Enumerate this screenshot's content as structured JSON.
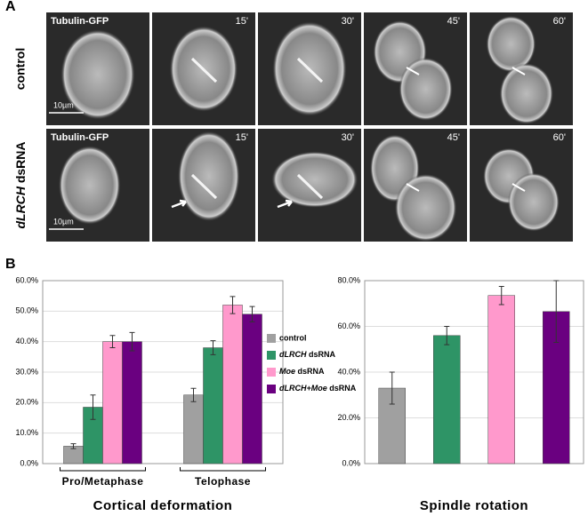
{
  "panel_a": {
    "label": "A",
    "rows": [
      {
        "label": "control",
        "frames": [
          "Tubulin-GFP",
          "15'",
          "30'",
          "45'",
          "60'"
        ],
        "scale_bar": "10µm"
      },
      {
        "label": "dLRCH dsRNA",
        "frames": [
          "Tubulin-GFP",
          "15'",
          "30'",
          "45'",
          "60'"
        ],
        "scale_bar": "10µm"
      }
    ]
  },
  "panel_b": {
    "label": "B"
  },
  "chart_data": [
    {
      "type": "bar",
      "x_label": "Cortical deformation",
      "categories": [
        "Pro/Metaphase",
        "Telophase"
      ],
      "series": [
        {
          "name": "control",
          "color": "#a0a0a0",
          "values": [
            5.7,
            22.5
          ],
          "errors": [
            0.8,
            2.2
          ]
        },
        {
          "name": "dLRCH dsRNA",
          "color": "#2e9466",
          "values": [
            18.5,
            38
          ],
          "errors": [
            4,
            2.3
          ]
        },
        {
          "name": "Moe dsRNA",
          "color": "#ff99cc",
          "values": [
            40,
            52
          ],
          "errors": [
            2,
            2.8
          ]
        },
        {
          "name": "dLRCH+Moe dsRNA",
          "color": "#6a0080",
          "values": [
            40,
            49
          ],
          "errors": [
            3,
            2.5
          ]
        }
      ],
      "ylim": [
        0,
        60
      ],
      "yticks": [
        {
          "value": 0,
          "label": "0.0%"
        },
        {
          "value": 10,
          "label": "10.0%"
        },
        {
          "value": 20,
          "label": "20.0%"
        },
        {
          "value": 30,
          "label": "30.0%"
        },
        {
          "value": 40,
          "label": "40.0%"
        },
        {
          "value": 50,
          "label": "50.0%"
        },
        {
          "value": 60,
          "label": "60.0%"
        }
      ],
      "grid": true,
      "legend": "right"
    },
    {
      "type": "bar",
      "x_label": "Spindle rotation",
      "categories": [
        null,
        null,
        null,
        null
      ],
      "values": [
        33,
        56,
        73.5,
        66.5
      ],
      "errors": [
        7,
        4,
        4,
        13.5
      ],
      "colors": [
        "#a0a0a0",
        "#2e9466",
        "#ff99cc",
        "#6a0080"
      ],
      "ylim": [
        0,
        80
      ],
      "yticks": [
        {
          "value": 0,
          "label": "0.0%"
        },
        {
          "value": 20,
          "label": "20.0%"
        },
        {
          "value": 40,
          "label": "40.0%"
        },
        {
          "value": 60,
          "label": "60.0%"
        },
        {
          "value": 80,
          "label": "80.0%"
        }
      ],
      "grid": true
    }
  ]
}
